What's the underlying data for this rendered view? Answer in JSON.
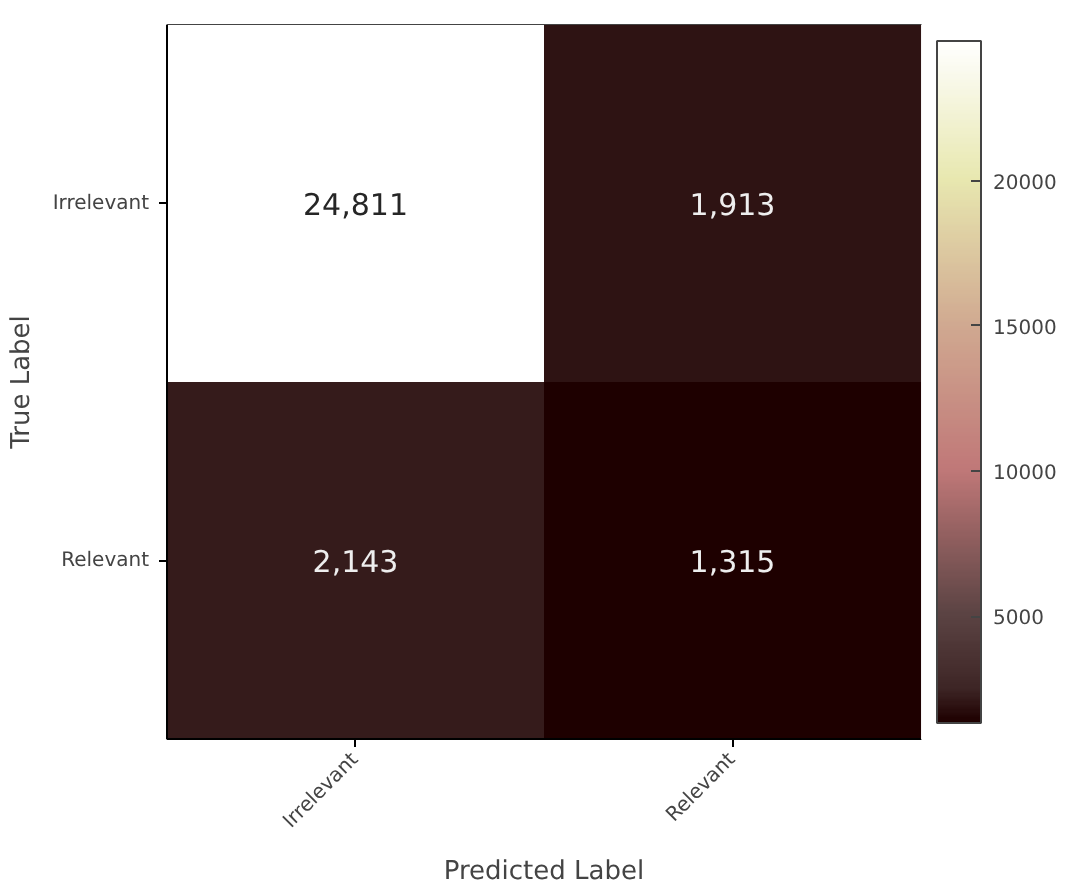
{
  "chart_data": {
    "type": "heatmap",
    "xlabel": "Predicted Label",
    "ylabel": "True Label",
    "categories": [
      "Irrelevant",
      "Relevant"
    ],
    "y_categories": [
      "Irrelevant",
      "Relevant"
    ],
    "cells": [
      [
        24811,
        1913
      ],
      [
        2143,
        1315
      ]
    ],
    "clim": [
      1315,
      24811
    ],
    "cticks": [
      5000,
      10000,
      15000,
      20000
    ],
    "cell_labels": [
      [
        "24,811",
        "1,913"
      ],
      [
        "2,143",
        "1,315"
      ]
    ],
    "data_labels": true
  }
}
